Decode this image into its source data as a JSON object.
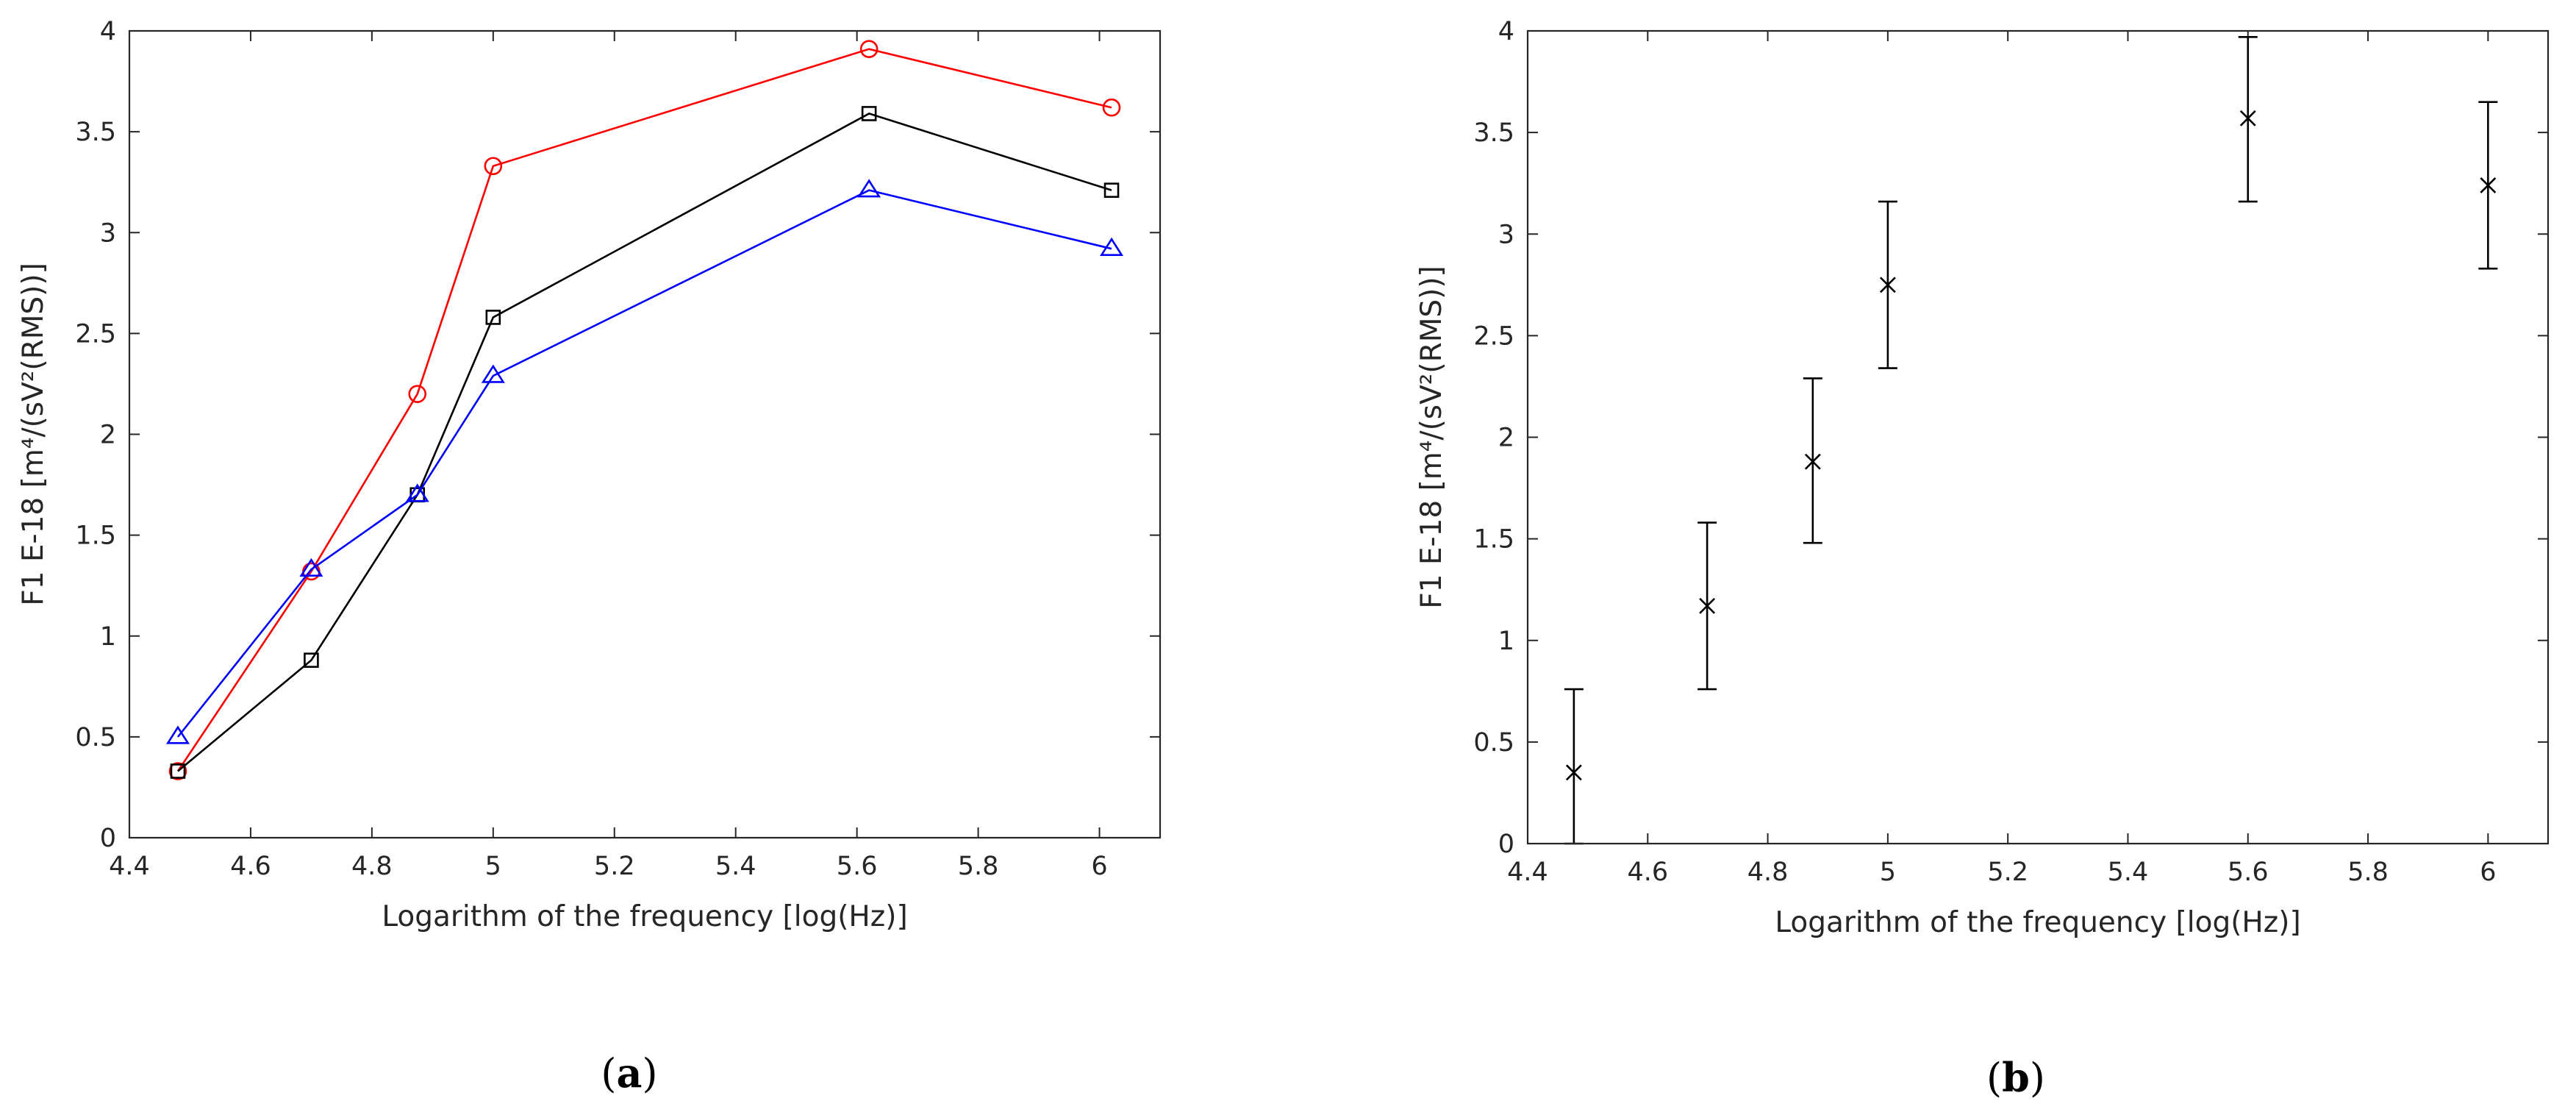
{
  "chart_data": [
    {
      "id": "a",
      "type": "line",
      "panel_label": {
        "open": "(",
        "letter": "a",
        "close": ")"
      },
      "xlabel": "Logarithm of the frequency [log(Hz)]",
      "ylabel": "F1 E-18 [m⁴/(sV²(RMS))]",
      "xlim": [
        4.4,
        6.1
      ],
      "ylim": [
        0,
        4
      ],
      "xticks": [
        4.4,
        4.6,
        4.8,
        5,
        5.2,
        5.4,
        5.6,
        5.8,
        6
      ],
      "xtick_labels": [
        "4.4",
        "4.6",
        "4.8",
        "5",
        "5.2",
        "5.4",
        "5.6",
        "5.8",
        "6"
      ],
      "yticks": [
        0,
        0.5,
        1,
        1.5,
        2,
        2.5,
        3,
        3.5,
        4
      ],
      "ytick_labels": [
        "0",
        "0.5",
        "1",
        "1.5",
        "2",
        "2.5",
        "3",
        "3.5",
        "4"
      ],
      "x": [
        4.48,
        4.7,
        4.875,
        5.0,
        5.62,
        6.02
      ],
      "series": [
        {
          "name": "red-circles",
          "color": "#ff0000",
          "marker": "circle",
          "values": [
            0.33,
            1.32,
            2.2,
            3.33,
            3.91,
            3.62
          ]
        },
        {
          "name": "black-squares",
          "color": "#000000",
          "marker": "square",
          "values": [
            0.33,
            0.88,
            1.7,
            2.58,
            3.59,
            3.21
          ]
        },
        {
          "name": "blue-triangles",
          "color": "#0000ff",
          "marker": "triangle",
          "values": [
            0.5,
            1.33,
            1.7,
            2.29,
            3.21,
            2.92
          ]
        }
      ]
    },
    {
      "id": "b",
      "type": "scatter",
      "panel_label": {
        "open": "(",
        "letter": "b",
        "close": ")"
      },
      "xlabel": "Logarithm of the frequency [log(Hz)]",
      "ylabel": "F1 E-18 [m⁴/(sV²(RMS))]",
      "xlim": [
        4.4,
        6.1
      ],
      "ylim": [
        0,
        4
      ],
      "xticks": [
        4.4,
        4.6,
        4.8,
        5,
        5.2,
        5.4,
        5.6,
        5.8,
        6
      ],
      "xtick_labels": [
        "4.4",
        "4.6",
        "4.8",
        "5",
        "5.2",
        "5.4",
        "5.6",
        "5.8",
        "6"
      ],
      "yticks": [
        0,
        0.5,
        1,
        1.5,
        2,
        2.5,
        3,
        3.5,
        4
      ],
      "ytick_labels": [
        "0",
        "0.5",
        "1",
        "1.5",
        "2",
        "2.5",
        "3",
        "3.5",
        "4"
      ],
      "x": [
        4.477,
        4.699,
        4.875,
        5.0,
        5.6,
        6.0
      ],
      "series": [
        {
          "name": "mean-with-error",
          "color": "#000000",
          "marker": "x",
          "values": [
            0.35,
            1.17,
            1.88,
            2.75,
            3.57,
            3.24
          ],
          "error_low": [
            0.0,
            0.76,
            1.48,
            2.34,
            3.16,
            2.83
          ],
          "error_high": [
            0.76,
            1.58,
            2.29,
            3.16,
            3.97,
            3.65
          ]
        }
      ]
    }
  ]
}
